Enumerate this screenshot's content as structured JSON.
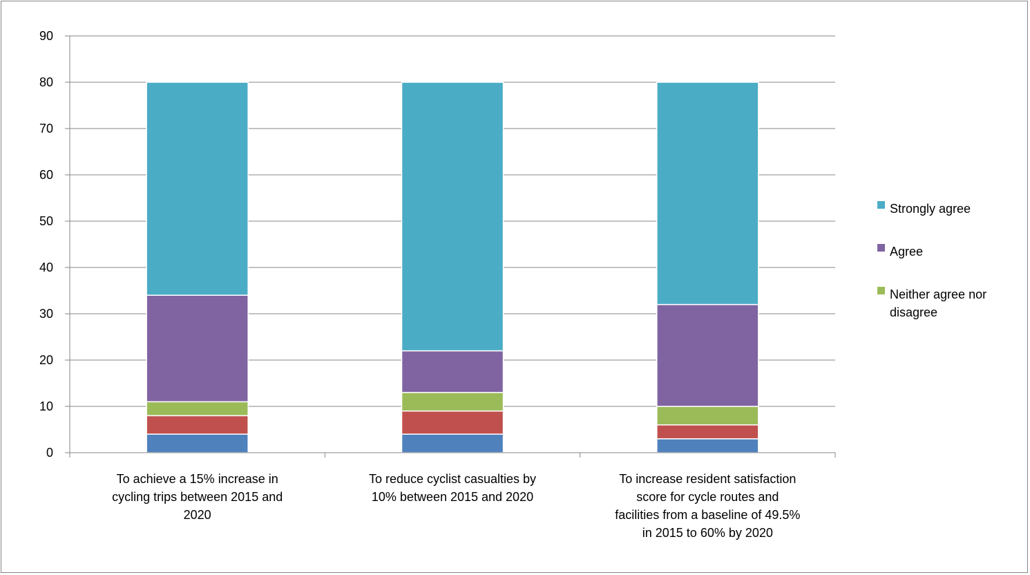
{
  "chart_data": {
    "type": "bar",
    "stacked": true,
    "title": "",
    "xlabel": "",
    "ylabel": "",
    "ylim": [
      0,
      90
    ],
    "yticks": [
      0,
      10,
      20,
      30,
      40,
      50,
      60,
      70,
      80,
      90
    ],
    "grid": true,
    "legend_position": "right",
    "categories": [
      [
        "To achieve a 15% increase in",
        "cycling trips between 2015 and",
        "2020"
      ],
      [
        "To reduce cyclist casualties by",
        "10% between 2015 and 2020"
      ],
      [
        "To increase resident satisfaction",
        "score for cycle routes and",
        "facilities from a baseline of 49.5%",
        "in 2015 to 60% by 2020"
      ]
    ],
    "series": [
      {
        "key": "s1",
        "color": "#4F81BD",
        "values": [
          4,
          4,
          3
        ]
      },
      {
        "key": "s2",
        "color": "#C0504D",
        "values": [
          4,
          5,
          3
        ]
      },
      {
        "name": "Neither agree nor disagree",
        "legend_lines": [
          "Neither agree nor",
          "disagree"
        ],
        "color": "#9BBB59",
        "values": [
          3,
          4,
          4
        ]
      },
      {
        "name": "Agree",
        "legend_lines": [
          "Agree"
        ],
        "color": "#8064A2",
        "values": [
          23,
          9,
          22
        ]
      },
      {
        "name": "Strongly agree",
        "legend_lines": [
          "Strongly agree"
        ],
        "color": "#4BACC6",
        "values": [
          46,
          58,
          48
        ]
      }
    ]
  }
}
